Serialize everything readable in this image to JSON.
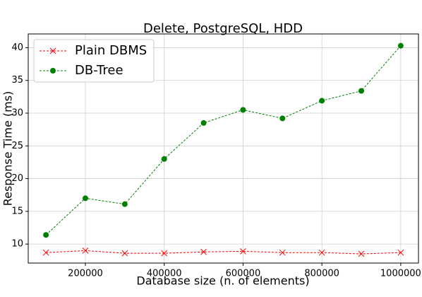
{
  "chart_data": {
    "type": "line",
    "title": "Delete, PostgreSQL, HDD",
    "x_label": "Database size (n. of elements)",
    "y_label": "Response Time (ms)",
    "x": [
      100000,
      200000,
      300000,
      400000,
      500000,
      600000,
      700000,
      800000,
      900000,
      1000000
    ],
    "series": [
      {
        "name": "Plain DBMS",
        "color": "#ff0000",
        "marker": "x",
        "values": [
          8.7,
          9.0,
          8.6,
          8.6,
          8.8,
          8.9,
          8.7,
          8.7,
          8.5,
          8.7
        ]
      },
      {
        "name": "DB-Tree",
        "color": "#008000",
        "marker": "o",
        "values": [
          11.4,
          17.0,
          16.1,
          23.0,
          28.5,
          30.5,
          29.2,
          31.9,
          33.4,
          40.3
        ]
      }
    ],
    "xlim": [
      55000,
      1045000
    ],
    "ylim": [
      7.1,
      42.1
    ],
    "xticks": [
      200000,
      400000,
      600000,
      800000,
      1000000
    ],
    "yticks": [
      10,
      15,
      20,
      25,
      30,
      35,
      40
    ],
    "grid": true,
    "legend": "upper left"
  }
}
